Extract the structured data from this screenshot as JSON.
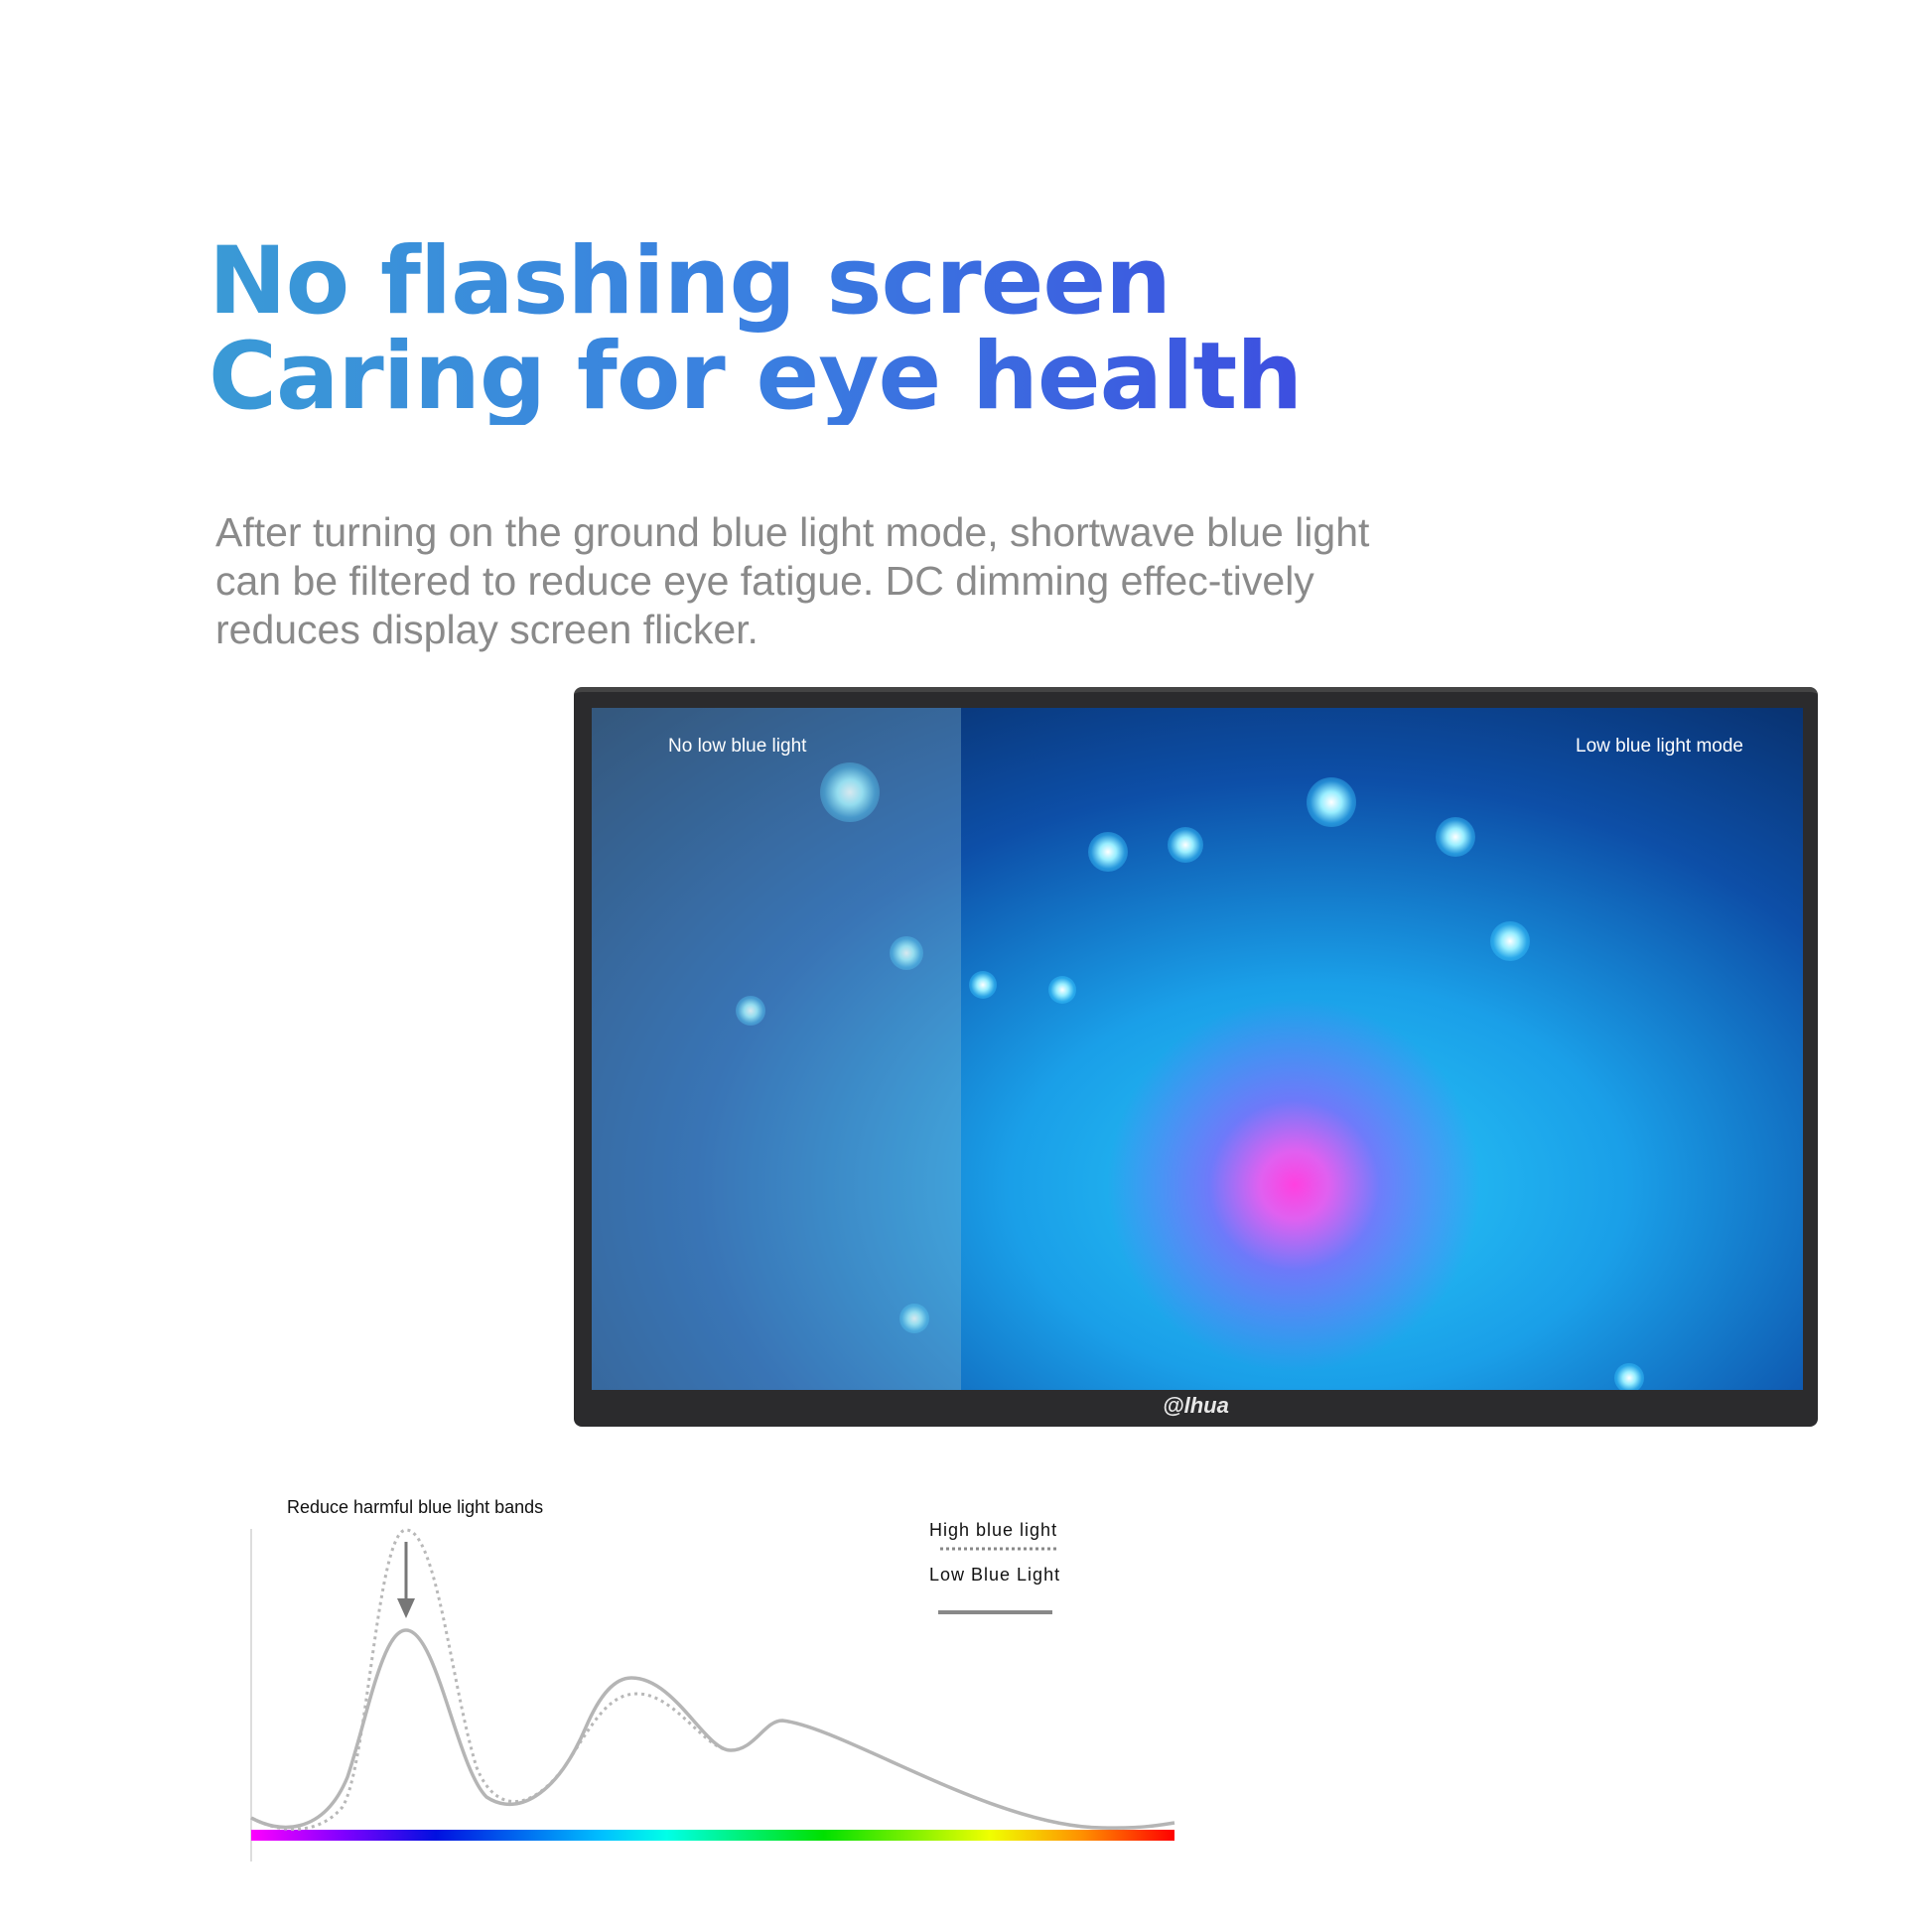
{
  "headline": {
    "line1": "No flashing screen",
    "line2": "Caring for eye health"
  },
  "description": "After turning on the ground blue light mode, shortwave blue light can be filtered to reduce eye fatigue. DC dimming effec-tively reduces display screen flicker.",
  "monitor": {
    "left_label": "No low blue light",
    "right_label": "Low blue light mode",
    "logo": "alhua"
  },
  "spectrum": {
    "annotation": "Reduce harmful blue light bands",
    "legend": [
      {
        "label": "High blue light",
        "style": "dotted"
      },
      {
        "label": "Low Blue Light",
        "style": "solid"
      }
    ],
    "colors": {
      "headline_start": "#3a9ad6",
      "headline_end": "#3d4fe0",
      "curve": "#b0b0b0"
    }
  }
}
